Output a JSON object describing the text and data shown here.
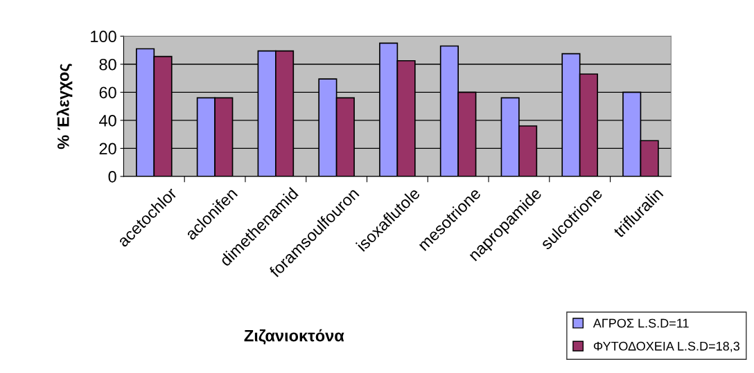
{
  "chart_data": {
    "type": "bar",
    "xlabel": "Ζιζανιοκτόνα",
    "ylabel": "% Έλεγχος",
    "categories": [
      "acetochlor",
      "aclonifen",
      "dimethenamid",
      "foramsoulfouron",
      "isoxaflutole",
      "mesotrione",
      "napropamide",
      "sulcotrione",
      "trifluralin"
    ],
    "series": [
      {
        "name": "ΑΓΡΟΣ L.S.D=11",
        "color": "#9999ff",
        "values": [
          91,
          56,
          89.5,
          69.5,
          95,
          93,
          56,
          87.5,
          60
        ]
      },
      {
        "name": "ΦΥΤΟΔΟΧΕΙΑ L.S.D=18,3",
        "color": "#993366",
        "values": [
          85.5,
          56,
          89.5,
          56,
          82.5,
          60,
          36,
          73,
          25.5
        ]
      }
    ],
    "ylim": [
      0,
      100
    ],
    "yticks": [
      0,
      20,
      40,
      60,
      80,
      100
    ],
    "grid": "y",
    "legend": "bottom right"
  }
}
